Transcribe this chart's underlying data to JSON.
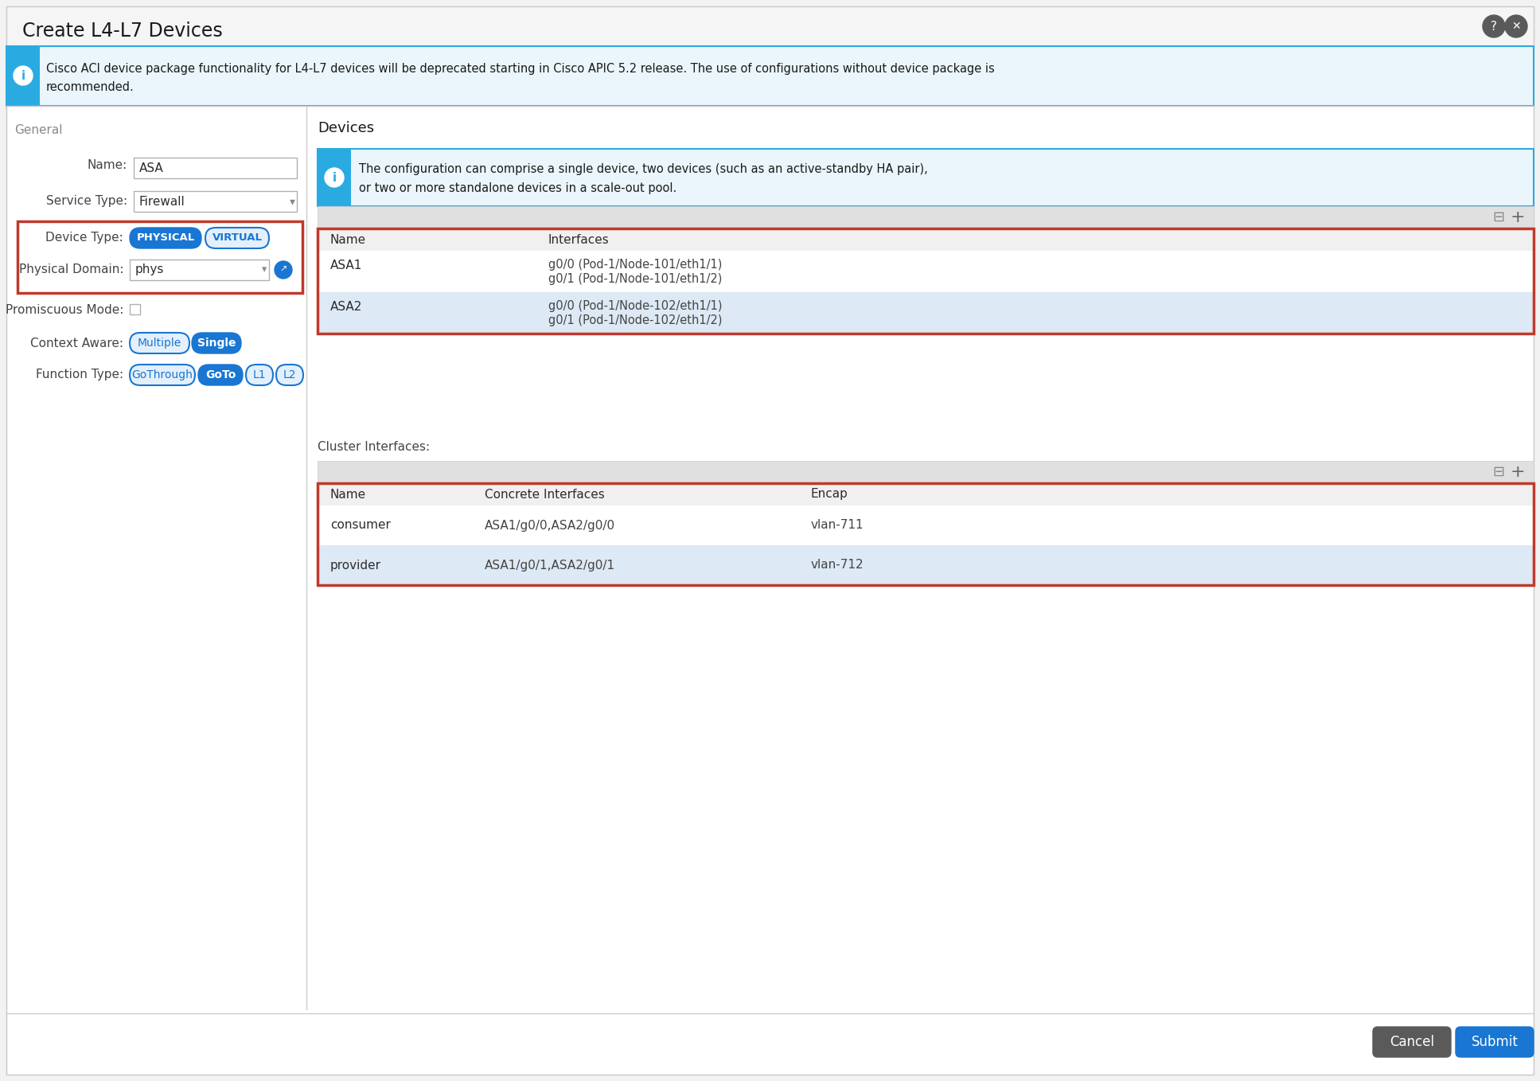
{
  "title": "Create L4-L7 Devices",
  "bg_color": "#f2f2f2",
  "dialog_bg": "#ffffff",
  "info_bg_light": "#eaf6fb",
  "info_border": "#29abe2",
  "info_text_line1": "Cisco ACI device package functionality for L4-L7 devices will be deprecated starting in Cisco APIC 5.2 release. The use of configurations without device package is",
  "info_text_line2": "recommended.",
  "general_label": "General",
  "name_label": "Name:",
  "name_value": "ASA",
  "service_type_label": "Service Type:",
  "service_type_value": "Firewall",
  "device_type_label": "Device Type:",
  "physical_btn": "PHYSICAL",
  "virtual_btn": "VIRTUAL",
  "physical_domain_label": "Physical Domain:",
  "physical_domain_value": "phys",
  "promiscuous_label": "Promiscuous Mode:",
  "context_aware_label": "Context Aware:",
  "context_multiple_btn": "Multiple",
  "context_single_btn": "Single",
  "function_type_label": "Function Type:",
  "func_gothrough_btn": "GoThrough",
  "func_goto_btn": "GoTo",
  "func_l1_btn": "L1",
  "func_l2_btn": "L2",
  "devices_label": "Devices",
  "devices_info_line1": "The configuration can comprise a single device, two devices (such as an active-standby HA pair),",
  "devices_info_line2": "or two or more standalone devices in a scale-out pool.",
  "devices_col1": "Name",
  "devices_col2": "Interfaces",
  "device_rows": [
    {
      "name": "ASA1",
      "iface1": "g0/0 (Pod-1/Node-101/eth1/1)",
      "iface2": "g0/1 (Pod-1/Node-101/eth1/2)",
      "highlight": false
    },
    {
      "name": "ASA2",
      "iface1": "g0/0 (Pod-1/Node-102/eth1/1)",
      "iface2": "g0/1 (Pod-1/Node-102/eth1/2)",
      "highlight": true
    }
  ],
  "cluster_label": "Cluster Interfaces:",
  "cluster_col1": "Name",
  "cluster_col2": "Concrete Interfaces",
  "cluster_col3": "Encap",
  "cluster_rows": [
    {
      "name": "consumer",
      "concrete": "ASA1/g0/0,ASA2/g0/0",
      "encap": "vlan-711",
      "highlight": false
    },
    {
      "name": "provider",
      "concrete": "ASA1/g0/1,ASA2/g0/1",
      "encap": "vlan-712",
      "highlight": true
    }
  ],
  "cancel_btn": "Cancel",
  "submit_btn": "Submit",
  "red_border": "#c0392b",
  "blue_active": "#1976d2",
  "blue_outline": "#1976d2",
  "blue_light": "#e3f0fb",
  "row_highlight": "#dde9f5",
  "toolbar_bg": "#e8e8e8",
  "text_dark": "#2c2c2c",
  "text_mid": "#444444",
  "text_light": "#666666",
  "divider": "#cccccc",
  "field_border": "#b0b0b0",
  "field_bg": "#ffffff",
  "header_row_bg": "#f0f0f0"
}
